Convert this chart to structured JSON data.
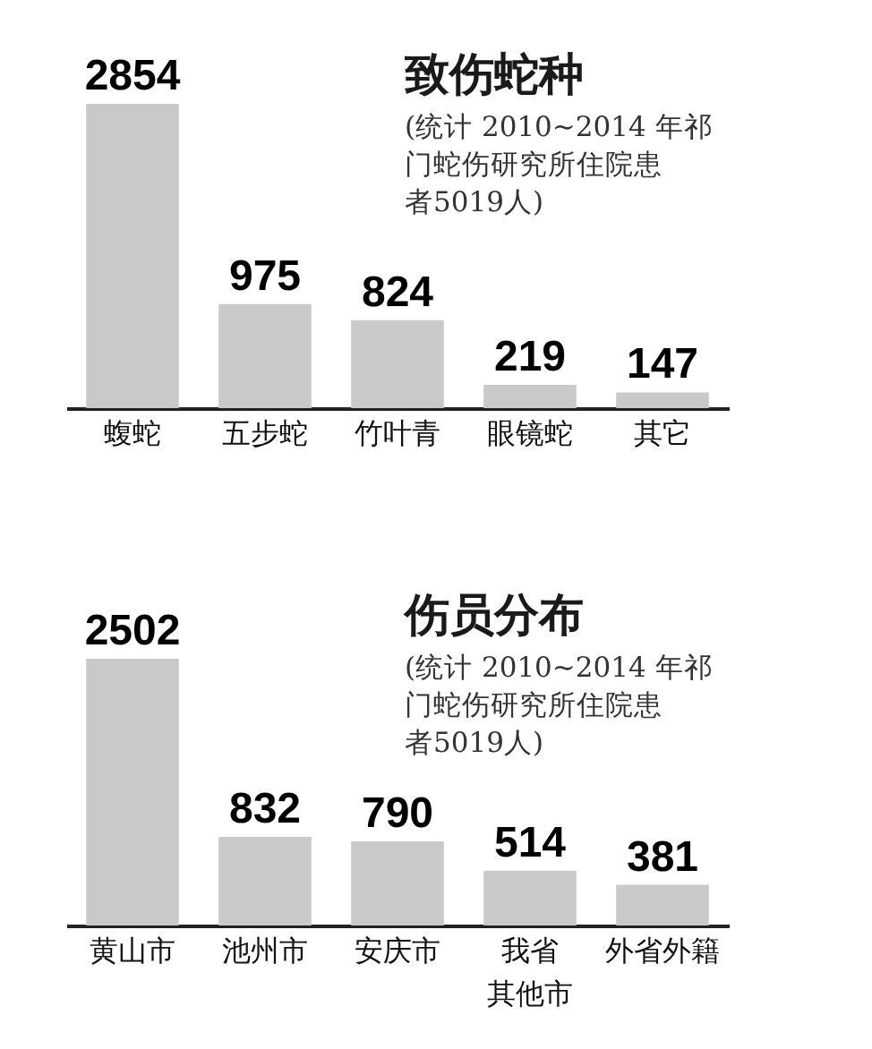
{
  "chart_data": [
    {
      "type": "bar",
      "title": "致伤蛇种",
      "subtitle": "(统计 2010~2014 年祁门蛇伤研究所住院患者5019人)",
      "categories": [
        "蝮蛇",
        "五步蛇",
        "竹叶青",
        "眼镜蛇",
        "其它"
      ],
      "values": [
        2854,
        975,
        824,
        219,
        147
      ],
      "color": "#c9c9c9",
      "data_labels": true,
      "tick_labels": "x"
    },
    {
      "type": "bar",
      "title": "伤员分布",
      "subtitle": "(统计 2010~2014 年祁门蛇伤研究所住院患者5019人)",
      "categories": [
        "黄山市",
        "池州市",
        "安庆市",
        "我省其他市",
        "外省外籍"
      ],
      "values": [
        2502,
        832,
        790,
        514,
        381
      ],
      "color": "#c9c9c9",
      "data_labels": true,
      "tick_labels": "x"
    }
  ]
}
